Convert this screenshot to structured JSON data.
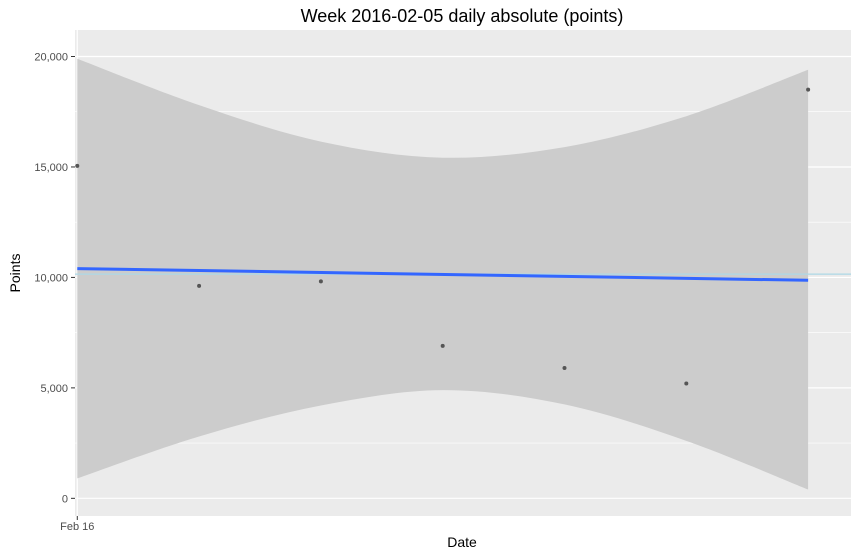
{
  "chart_data": {
    "type": "scatter",
    "title": "Week 2016-02-05 daily absolute (points)",
    "xlabel": "Date",
    "ylabel": "Points",
    "ylim": [
      -800,
      21200
    ],
    "xlim": [
      "2016-02-15T23:33:00",
      "2016-02-22T08:27:00"
    ],
    "y_ticks": [
      {
        "value": 0,
        "label": "0"
      },
      {
        "value": 5000,
        "label": "5,000"
      },
      {
        "value": 10000,
        "label": "10,000"
      },
      {
        "value": 15000,
        "label": "15,000"
      },
      {
        "value": 20000,
        "label": "20,000"
      }
    ],
    "x_ticks": [
      {
        "value": "2016-02-16",
        "label": "Feb 16"
      }
    ],
    "points": [
      {
        "x": "2016-02-16",
        "y": 15050
      },
      {
        "x": "2016-02-17",
        "y": 9620
      },
      {
        "x": "2016-02-18",
        "y": 9820
      },
      {
        "x": "2016-02-19",
        "y": 6900
      },
      {
        "x": "2016-02-20",
        "y": 5900
      },
      {
        "x": "2016-02-21",
        "y": 5200
      },
      {
        "x": "2016-02-22",
        "y": 18500
      }
    ],
    "trend_line": {
      "x": [
        "2016-02-16",
        "2016-02-22"
      ],
      "y": [
        10400,
        9870
      ]
    },
    "confidence_band": [
      {
        "x": "2016-02-16",
        "upper": 19900,
        "lower": 900
      },
      {
        "x": "2016-02-17",
        "upper": 17800,
        "lower": 2800
      },
      {
        "x": "2016-02-18",
        "upper": 16150,
        "lower": 4200
      },
      {
        "x": "2016-02-19",
        "upper": 15420,
        "lower": 4900
      },
      {
        "x": "2016-02-20",
        "upper": 15900,
        "lower": 4250
      },
      {
        "x": "2016-02-21",
        "upper": 17300,
        "lower": 2600
      },
      {
        "x": "2016-02-22",
        "upper": 19400,
        "lower": 400
      }
    ],
    "reference_line": {
      "y": 10150
    },
    "grid": true,
    "legend": "none",
    "colors": {
      "panel": "#ebebeb",
      "grid": "#ffffff",
      "band": "#cccccc",
      "trend": "#3366ff",
      "reference": "#add8e6",
      "point": "#555555"
    }
  }
}
